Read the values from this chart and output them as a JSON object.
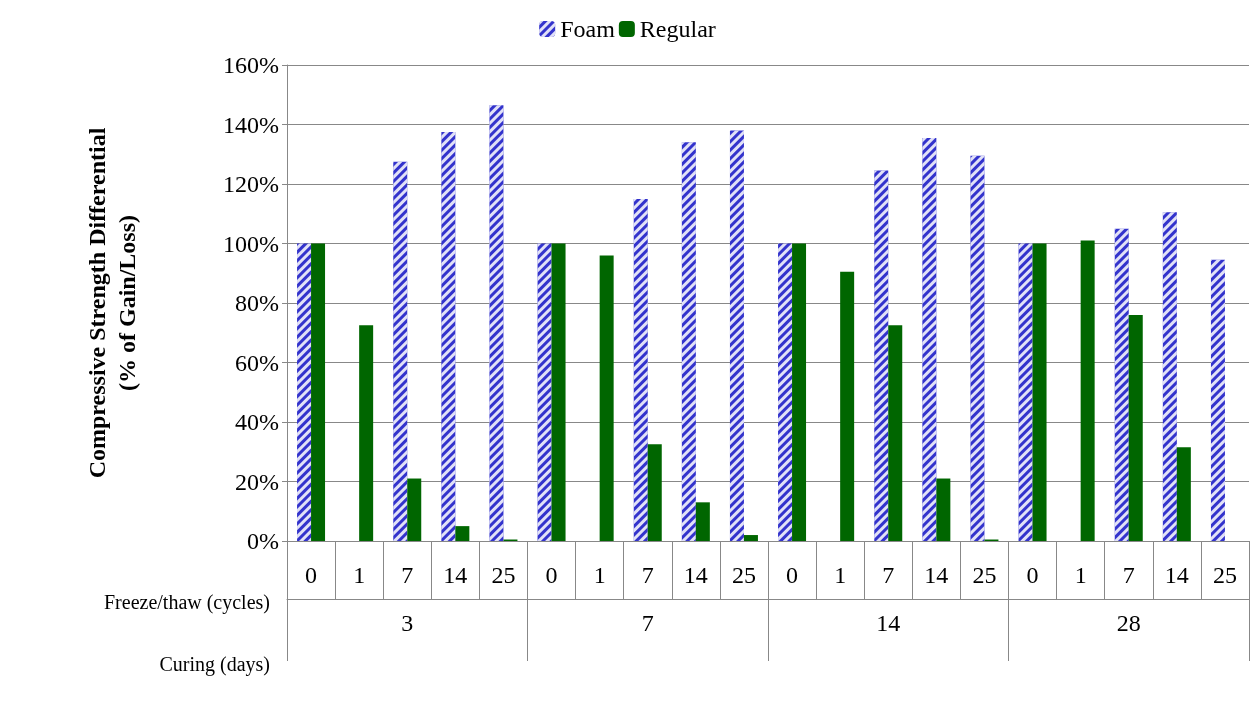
{
  "chart_data": {
    "type": "bar",
    "categories": [
      "0",
      "1",
      "7",
      "14",
      "25",
      "0",
      "1",
      "7",
      "14",
      "25",
      "0",
      "1",
      "7",
      "14",
      "25",
      "0",
      "1",
      "7",
      "14",
      "25"
    ],
    "series": [
      {
        "name": "Foam",
        "color": "#3333cc",
        "values": [
          100,
          null,
          127.5,
          137.5,
          146.5,
          100,
          null,
          115,
          134,
          138,
          100,
          null,
          124.5,
          135.5,
          129.5,
          100,
          null,
          105,
          110.5,
          94.5
        ]
      },
      {
        "name": "Regular",
        "color": "#006600",
        "values": [
          100,
          72.5,
          21,
          5,
          0.5,
          100,
          96,
          32.5,
          13,
          2,
          100,
          90.5,
          72.5,
          21,
          0.5,
          100,
          101,
          76,
          31.5,
          null
        ]
      }
    ],
    "xlabel": "Freeze/thaw (cycles)",
    "ylabel": "Compressive Strength Differential\n(% of Gain/Loss)",
    "annotations": [
      "Curing (days)",
      "3",
      "7",
      "14",
      "28"
    ],
    "ylim": [
      0,
      160
    ],
    "yticks": [
      {
        "value": 0,
        "label": "0%"
      },
      {
        "value": 20,
        "label": "20%"
      },
      {
        "value": 40,
        "label": "40%"
      },
      {
        "value": 60,
        "label": "60%"
      },
      {
        "value": 80,
        "label": "80%"
      },
      {
        "value": 100,
        "label": "100%"
      },
      {
        "value": 120,
        "label": "120%"
      },
      {
        "value": 140,
        "label": "140%"
      },
      {
        "value": 160,
        "label": "160%"
      }
    ],
    "grid": "y",
    "legend": "top"
  }
}
